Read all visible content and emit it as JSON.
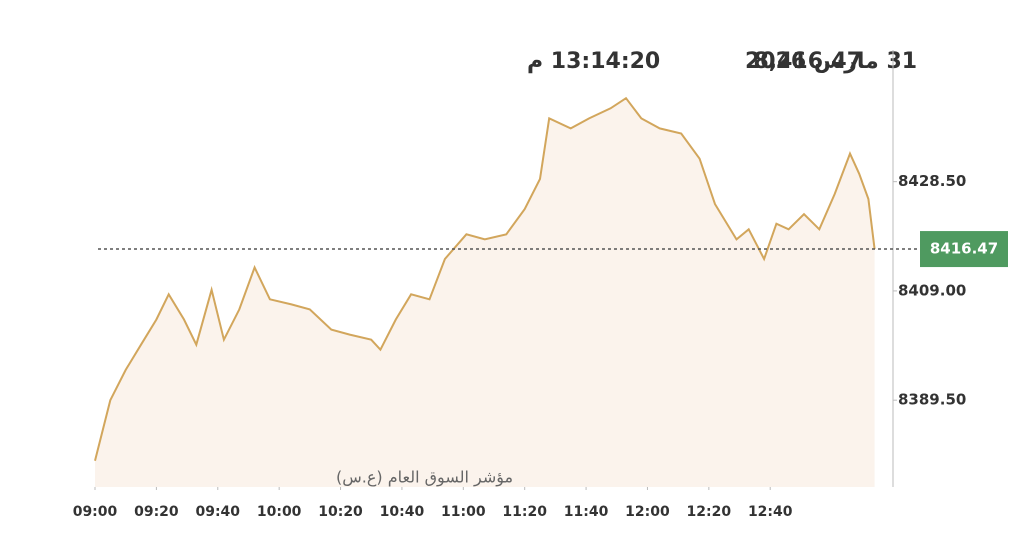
{
  "chart_data": {
    "type": "line",
    "header": {
      "value": "8,416.47",
      "date": "31 مارس 2026",
      "time": "13:14:20 م"
    },
    "subtitle": "مؤشر السوق العام (ع.س)",
    "x": [
      540,
      545,
      550,
      555,
      560,
      564,
      569,
      573,
      578,
      582,
      587,
      592,
      597,
      604,
      610,
      617,
      623,
      630,
      633,
      638,
      643,
      649,
      654,
      661,
      667,
      674,
      680,
      685,
      688,
      695,
      701,
      708,
      713,
      718,
      724,
      731,
      737,
      742,
      749,
      753,
      758,
      762,
      766,
      771,
      776,
      781,
      786,
      789,
      792,
      794
    ],
    "values": [
      8378.7,
      8389.5,
      8394.9,
      8399.4,
      8403.9,
      8408.4,
      8403.9,
      8399.4,
      8409.2,
      8400.3,
      8405.7,
      8413.2,
      8407.5,
      8406.6,
      8405.7,
      8402.1,
      8401.2,
      8400.3,
      8398.5,
      8403.9,
      8408.4,
      8407.5,
      8414.7,
      8419.1,
      8418.2,
      8419.1,
      8423.6,
      8429.0,
      8439.8,
      8438.0,
      8439.8,
      8441.6,
      8443.4,
      8439.8,
      8438.0,
      8437.1,
      8432.6,
      8424.5,
      8418.2,
      8420.0,
      8414.7,
      8421.0,
      8420.0,
      8422.7,
      8420.0,
      8426.3,
      8433.5,
      8429.9,
      8425.4,
      8416.47
    ],
    "color": "#d2a65c",
    "fill": "#fbf3ec",
    "last_value": 8416.47,
    "badge_color": "#4f9a60",
    "xlim": [
      540,
      800
    ],
    "xticks": [
      {
        "value": 540,
        "label": "09:00"
      },
      {
        "value": 560,
        "label": "09:20"
      },
      {
        "value": 580,
        "label": "09:40"
      },
      {
        "value": 600,
        "label": "10:00"
      },
      {
        "value": 620,
        "label": "10:20"
      },
      {
        "value": 640,
        "label": "10:40"
      },
      {
        "value": 660,
        "label": "11:00"
      },
      {
        "value": 680,
        "label": "11:20"
      },
      {
        "value": 700,
        "label": "11:40"
      },
      {
        "value": 720,
        "label": "12:00"
      },
      {
        "value": 740,
        "label": "12:20"
      },
      {
        "value": 760,
        "label": "12:40"
      }
    ],
    "ylim": [
      8374,
      8452
    ],
    "yticks": [
      {
        "value": 8389.5,
        "label": "8389.50"
      },
      {
        "value": 8409,
        "label": "8409.00"
      },
      {
        "value": 8428.5,
        "label": "8428.50"
      }
    ]
  }
}
